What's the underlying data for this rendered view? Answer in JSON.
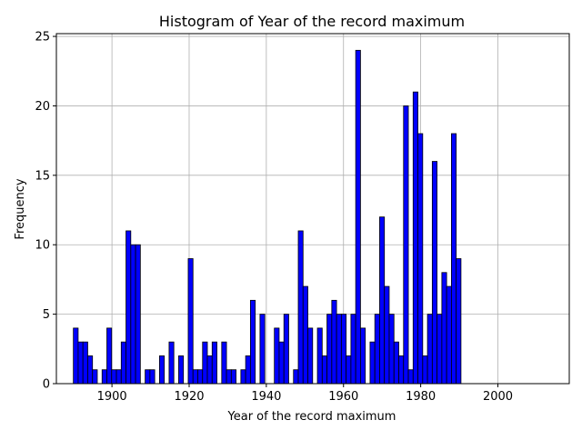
{
  "chart_data": {
    "type": "bar",
    "title": "Histogram of Year of the record maximum",
    "xlabel": "Year of the record maximum",
    "ylabel": "Frequency",
    "xlim": [
      1885.6,
      2018.5
    ],
    "ylim": [
      0,
      25.2
    ],
    "xticks": [
      1900,
      1920,
      1940,
      1960,
      1980,
      2000
    ],
    "yticks": [
      0,
      5,
      10,
      15,
      20,
      25
    ],
    "grid": true,
    "legend": "none",
    "bar_color": "#0000ff",
    "edge_color": "#000000",
    "bin_start": 1890,
    "bin_width": 1.24,
    "values": [
      4,
      3,
      3,
      2,
      1,
      0,
      1,
      4,
      1,
      1,
      3,
      11,
      10,
      10,
      0,
      1,
      1,
      0,
      2,
      0,
      3,
      0,
      2,
      0,
      9,
      1,
      1,
      3,
      2,
      3,
      0,
      3,
      1,
      1,
      0,
      1,
      2,
      6,
      0,
      5,
      0,
      0,
      4,
      3,
      5,
      0,
      1,
      11,
      7,
      4,
      0,
      4,
      2,
      5,
      6,
      5,
      5,
      2,
      5,
      24,
      4,
      0,
      3,
      5,
      12,
      7,
      5,
      3,
      2,
      20,
      1,
      21,
      18,
      2,
      5,
      16,
      5,
      8,
      7,
      18,
      9
    ]
  }
}
